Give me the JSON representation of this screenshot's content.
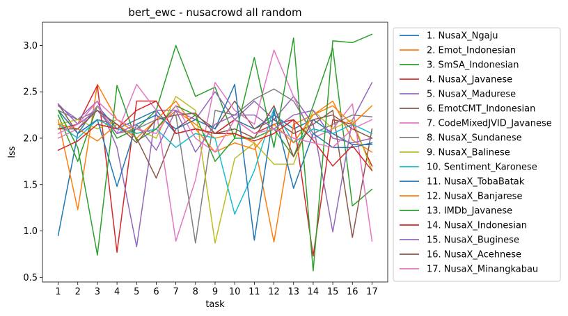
{
  "chart_data": {
    "type": "line",
    "title": "bert_ewc - nusacrowd all random",
    "xlabel": "task",
    "ylabel": "lss",
    "x": [
      1,
      2,
      3,
      4,
      5,
      6,
      7,
      8,
      9,
      10,
      11,
      12,
      13,
      14,
      15,
      16,
      17
    ],
    "xlim": [
      0.2,
      17.8
    ],
    "ylim": [
      0.45,
      3.25
    ],
    "yticks": [
      0.5,
      1.0,
      1.5,
      2.0,
      2.5,
      3.0
    ],
    "yticklabels": [
      "0.5",
      "1.0",
      "1.5",
      "2.0",
      "2.5",
      "3.0"
    ],
    "xticklabels": [
      "1",
      "2",
      "3",
      "4",
      "5",
      "6",
      "7",
      "8",
      "9",
      "10",
      "11",
      "12",
      "13",
      "14",
      "15",
      "16",
      "17"
    ],
    "legend_position": "outside-right",
    "grid": false,
    "series": [
      {
        "name": "1. NusaX_Ngaju",
        "color": "#1f77b4",
        "values": [
          0.95,
          2.05,
          2.35,
          2.1,
          2.2,
          2.3,
          2.05,
          2.1,
          2.05,
          2.2,
          2.1,
          2.25,
          2.1,
          2.2,
          2.05,
          1.93,
          1.93
        ]
      },
      {
        "name": "2. Emot_Indonesian",
        "color": "#ff7f0e",
        "values": [
          2.2,
          1.23,
          2.58,
          2.2,
          2.05,
          2.1,
          2.3,
          2.15,
          2.0,
          2.05,
          1.95,
          0.88,
          2.15,
          2.25,
          2.4,
          1.98,
          1.85
        ]
      },
      {
        "name": "3. SmSA_Indonesian",
        "color": "#2ca02c",
        "values": [
          2.25,
          1.75,
          2.35,
          2.0,
          2.1,
          2.3,
          3.0,
          2.45,
          2.55,
          2.0,
          2.0,
          2.1,
          1.8,
          2.35,
          2.97,
          1.27,
          1.45
        ]
      },
      {
        "name": "4. NusaX_Javanese",
        "color": "#d62728",
        "values": [
          2.1,
          2.15,
          2.57,
          0.77,
          2.4,
          2.4,
          2.05,
          2.1,
          2.05,
          2.2,
          2.05,
          2.15,
          2.2,
          0.73,
          2.2,
          2.15,
          1.7
        ]
      },
      {
        "name": "5. NusaX_Madurese",
        "color": "#9467bd",
        "values": [
          2.35,
          2.2,
          2.4,
          1.9,
          0.83,
          2.3,
          2.3,
          2.2,
          2.5,
          2.2,
          2.4,
          2.2,
          2.45,
          2.15,
          0.99,
          2.2,
          2.6
        ]
      },
      {
        "name": "6. EmotCMT_Indonesian",
        "color": "#8c564b",
        "values": [
          2.37,
          2.05,
          2.2,
          2.15,
          2.0,
          1.57,
          2.1,
          2.25,
          2.1,
          2.4,
          2.1,
          2.2,
          2.05,
          2.15,
          2.3,
          0.93,
          2.1
        ]
      },
      {
        "name": "7. CodeMixedJVID_Javanese",
        "color": "#e377c2",
        "values": [
          2.0,
          2.1,
          2.35,
          2.05,
          2.58,
          2.3,
          0.89,
          1.55,
          2.6,
          2.3,
          2.15,
          2.95,
          2.45,
          2.0,
          2.1,
          2.37,
          0.89
        ]
      },
      {
        "name": "8. NusaX_Sundanese",
        "color": "#7f7f7f",
        "values": [
          2.3,
          2.2,
          2.3,
          2.05,
          2.1,
          2.2,
          2.25,
          0.87,
          2.3,
          2.25,
          2.42,
          2.53,
          2.4,
          2.05,
          2.15,
          2.25,
          2.23
        ]
      },
      {
        "name": "9. NusaX_Balinese",
        "color": "#bcbd22",
        "values": [
          2.15,
          2.2,
          2.1,
          2.2,
          2.1,
          2.0,
          2.45,
          2.3,
          0.87,
          1.78,
          1.95,
          1.72,
          1.72,
          2.3,
          2.1,
          2.2,
          1.65
        ]
      },
      {
        "name": "10. Sentiment_Karonese",
        "color": "#17becf",
        "values": [
          2.15,
          2.0,
          2.2,
          2.1,
          2.05,
          2.1,
          1.9,
          2.05,
          2.0,
          1.18,
          1.65,
          2.32,
          1.95,
          2.1,
          2.05,
          2.15,
          2.05
        ]
      },
      {
        "name": "11. NusaX_TobaBatak",
        "color": "#1f77b4",
        "values": [
          2.3,
          2.05,
          2.2,
          1.48,
          2.15,
          2.25,
          2.1,
          2.2,
          2.1,
          2.58,
          0.9,
          2.3,
          1.46,
          2.05,
          1.9,
          1.9,
          1.95
        ]
      },
      {
        "name": "12. NusaX_Banjarese",
        "color": "#ff7f0e",
        "values": [
          2.15,
          2.1,
          1.97,
          2.15,
          2.0,
          2.2,
          2.4,
          2.1,
          1.85,
          1.95,
          1.88,
          2.15,
          1.95,
          2.25,
          2.35,
          2.15,
          2.35
        ]
      },
      {
        "name": "13. IMDb_Javanese",
        "color": "#2ca02c",
        "values": [
          2.3,
          1.9,
          0.74,
          2.57,
          1.97,
          2.1,
          2.35,
          2.25,
          1.75,
          2.0,
          2.87,
          1.9,
          3.08,
          0.57,
          3.05,
          3.03,
          3.12
        ]
      },
      {
        "name": "14. NusaX_Indonesian",
        "color": "#d62728",
        "values": [
          1.87,
          1.97,
          2.15,
          2.1,
          2.3,
          2.4,
          2.05,
          2.1,
          2.05,
          2.05,
          1.97,
          2.05,
          2.2,
          1.98,
          1.7,
          1.92,
          1.65
        ]
      },
      {
        "name": "15. NusaX_Buginese",
        "color": "#9467bd",
        "values": [
          2.37,
          2.15,
          2.3,
          2.05,
          2.15,
          1.87,
          2.3,
          1.85,
          2.15,
          2.25,
          2.25,
          2.1,
          2.25,
          2.3,
          2.0,
          1.95,
          2.0
        ]
      },
      {
        "name": "16. NusaX_Acehnese",
        "color": "#8c564b",
        "values": [
          2.1,
          2.1,
          2.3,
          2.15,
          1.95,
          2.2,
          2.25,
          2.27,
          2.05,
          2.1,
          2.0,
          2.35,
          1.8,
          2.2,
          2.25,
          2.1,
          2.0
        ]
      },
      {
        "name": "17. NusaX_Minangkabau",
        "color": "#e377c2",
        "values": [
          2.05,
          2.15,
          2.4,
          2.2,
          2.1,
          2.05,
          2.35,
          2.0,
          1.85,
          2.2,
          2.05,
          2.1,
          2.0,
          1.95,
          1.9,
          2.1,
          2.2
        ]
      }
    ]
  }
}
